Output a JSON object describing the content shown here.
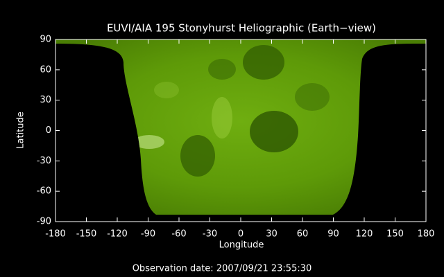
{
  "chart_data": {
    "type": "image",
    "title": "EUVI/AIA 195 Stonyhurst Heliographic (Earth−view)",
    "xlabel": "Longitude",
    "ylabel": "Latitude",
    "footer": "Observation date: 2007/09/21 23:55:30",
    "xlim": [
      -180,
      180
    ],
    "ylim": [
      -90,
      90
    ],
    "xticks": [
      -180,
      -150,
      -120,
      -90,
      -60,
      -30,
      0,
      30,
      60,
      90,
      120,
      150,
      180
    ],
    "yticks": [
      -90,
      -60,
      -30,
      0,
      30,
      60,
      90
    ]
  }
}
